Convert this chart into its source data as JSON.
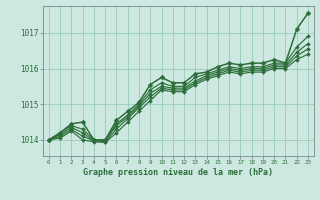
{
  "bg_color": "#cce8e0",
  "grid_color": "#99ccbb",
  "line_color": "#2d6e3a",
  "title": "Graphe pression niveau de la mer (hPa)",
  "yticks": [
    1014,
    1015,
    1016,
    1017
  ],
  "ylim": [
    1013.55,
    1017.75
  ],
  "xlim": [
    -0.5,
    23.5
  ],
  "series": [
    [
      1014.0,
      1014.2,
      1014.45,
      1014.5,
      1014.0,
      1014.0,
      1014.55,
      1014.8,
      1015.05,
      1015.55,
      1015.75,
      1015.6,
      1015.6,
      1015.85,
      1015.9,
      1016.05,
      1016.15,
      1016.1,
      1016.15,
      1016.15,
      1016.25,
      1016.15,
      1017.1,
      1017.55
    ],
    [
      1014.0,
      1014.2,
      1014.4,
      1014.3,
      1014.0,
      1014.0,
      1014.45,
      1014.7,
      1015.0,
      1015.4,
      1015.6,
      1015.5,
      1015.5,
      1015.75,
      1015.85,
      1015.95,
      1016.05,
      1016.0,
      1016.05,
      1016.05,
      1016.15,
      1016.15,
      1016.6,
      1016.9
    ],
    [
      1014.0,
      1014.15,
      1014.35,
      1014.2,
      1013.98,
      1013.98,
      1014.4,
      1014.65,
      1014.95,
      1015.3,
      1015.5,
      1015.45,
      1015.45,
      1015.65,
      1015.8,
      1015.9,
      1016.0,
      1015.95,
      1016.0,
      1016.0,
      1016.1,
      1016.1,
      1016.45,
      1016.7
    ],
    [
      1014.0,
      1014.1,
      1014.3,
      1014.1,
      1013.98,
      1013.95,
      1014.3,
      1014.6,
      1014.9,
      1015.2,
      1015.45,
      1015.4,
      1015.4,
      1015.6,
      1015.75,
      1015.85,
      1015.95,
      1015.9,
      1015.95,
      1015.95,
      1016.05,
      1016.05,
      1016.35,
      1016.55
    ],
    [
      1014.0,
      1014.05,
      1014.25,
      1014.0,
      1013.95,
      1013.93,
      1014.2,
      1014.5,
      1014.8,
      1015.1,
      1015.4,
      1015.35,
      1015.35,
      1015.55,
      1015.7,
      1015.8,
      1015.9,
      1015.85,
      1015.9,
      1015.9,
      1016.0,
      1016.0,
      1016.25,
      1016.4
    ]
  ],
  "xlabel_hours": [
    0,
    1,
    2,
    3,
    4,
    5,
    6,
    7,
    8,
    9,
    10,
    11,
    12,
    13,
    14,
    15,
    16,
    17,
    18,
    19,
    20,
    21,
    22,
    23
  ]
}
